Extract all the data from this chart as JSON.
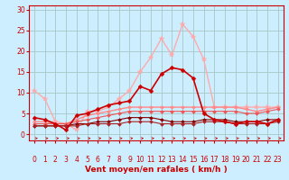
{
  "title": "",
  "xlabel": "Vent moyen/en rafales ( km/h )",
  "ylabel": "",
  "xlim": [
    -0.5,
    23.5
  ],
  "ylim": [
    -1.5,
    31
  ],
  "yticks": [
    0,
    5,
    10,
    15,
    20,
    25,
    30
  ],
  "xticks": [
    0,
    1,
    2,
    3,
    4,
    5,
    6,
    7,
    8,
    9,
    10,
    11,
    12,
    13,
    14,
    15,
    16,
    17,
    18,
    19,
    20,
    21,
    22,
    23
  ],
  "bg_color": "#cceeff",
  "grid_color": "#aacccc",
  "series": [
    {
      "y": [
        10.5,
        8.5,
        3.0,
        2.5,
        1.0,
        5.5,
        5.5,
        6.5,
        8.5,
        10.5,
        15.0,
        18.5,
        23.0,
        19.0,
        26.5,
        23.5,
        18.0,
        6.5,
        6.5,
        6.5,
        6.5,
        6.5,
        6.5,
        6.5
      ],
      "color": "#ffaaaa",
      "lw": 1.0,
      "marker": "*",
      "ms": 4,
      "zorder": 3
    },
    {
      "y": [
        4.0,
        3.5,
        2.5,
        1.0,
        4.5,
        5.0,
        6.0,
        7.0,
        7.5,
        8.0,
        11.5,
        10.5,
        14.5,
        16.0,
        15.5,
        13.5,
        5.0,
        3.5,
        3.0,
        2.5,
        3.0,
        3.0,
        2.5,
        3.5
      ],
      "color": "#cc0000",
      "lw": 1.2,
      "marker": "D",
      "ms": 2.5,
      "zorder": 4
    },
    {
      "y": [
        3.0,
        3.0,
        2.5,
        2.5,
        3.5,
        4.5,
        5.0,
        5.5,
        6.0,
        6.5,
        6.5,
        6.5,
        6.5,
        6.5,
        6.5,
        6.5,
        6.5,
        6.5,
        6.5,
        6.5,
        6.0,
        5.5,
        6.0,
        6.5
      ],
      "color": "#ff8888",
      "lw": 1.0,
      "marker": "D",
      "ms": 2,
      "zorder": 3
    },
    {
      "y": [
        2.5,
        2.5,
        2.5,
        2.5,
        3.0,
        3.5,
        4.0,
        4.5,
        5.0,
        5.5,
        5.5,
        5.5,
        5.5,
        5.5,
        5.5,
        5.5,
        5.5,
        5.5,
        5.5,
        5.5,
        5.0,
        5.0,
        5.5,
        6.0
      ],
      "color": "#ee5555",
      "lw": 0.8,
      "marker": "D",
      "ms": 2,
      "zorder": 3
    },
    {
      "y": [
        2.0,
        2.0,
        2.0,
        2.0,
        2.5,
        2.5,
        3.0,
        3.0,
        3.5,
        4.0,
        4.0,
        4.0,
        3.5,
        3.0,
        3.0,
        3.0,
        3.5,
        3.5,
        3.5,
        3.0,
        3.0,
        3.0,
        3.5,
        3.5
      ],
      "color": "#880000",
      "lw": 0.8,
      "marker": "D",
      "ms": 2,
      "zorder": 3
    },
    {
      "y": [
        2.0,
        2.0,
        2.0,
        2.0,
        2.0,
        2.5,
        2.5,
        2.5,
        2.5,
        3.0,
        3.0,
        3.0,
        2.5,
        2.5,
        2.5,
        2.5,
        3.0,
        3.0,
        3.0,
        2.5,
        2.5,
        2.5,
        2.5,
        3.0
      ],
      "color": "#aa2222",
      "lw": 0.8,
      "marker": "D",
      "ms": 2,
      "zorder": 3
    }
  ],
  "axis_color": "#cc0000",
  "tick_color": "#cc0000",
  "xlabel_color": "#cc0000",
  "tick_fontsize": 5.5,
  "xlabel_fontsize": 6.5
}
